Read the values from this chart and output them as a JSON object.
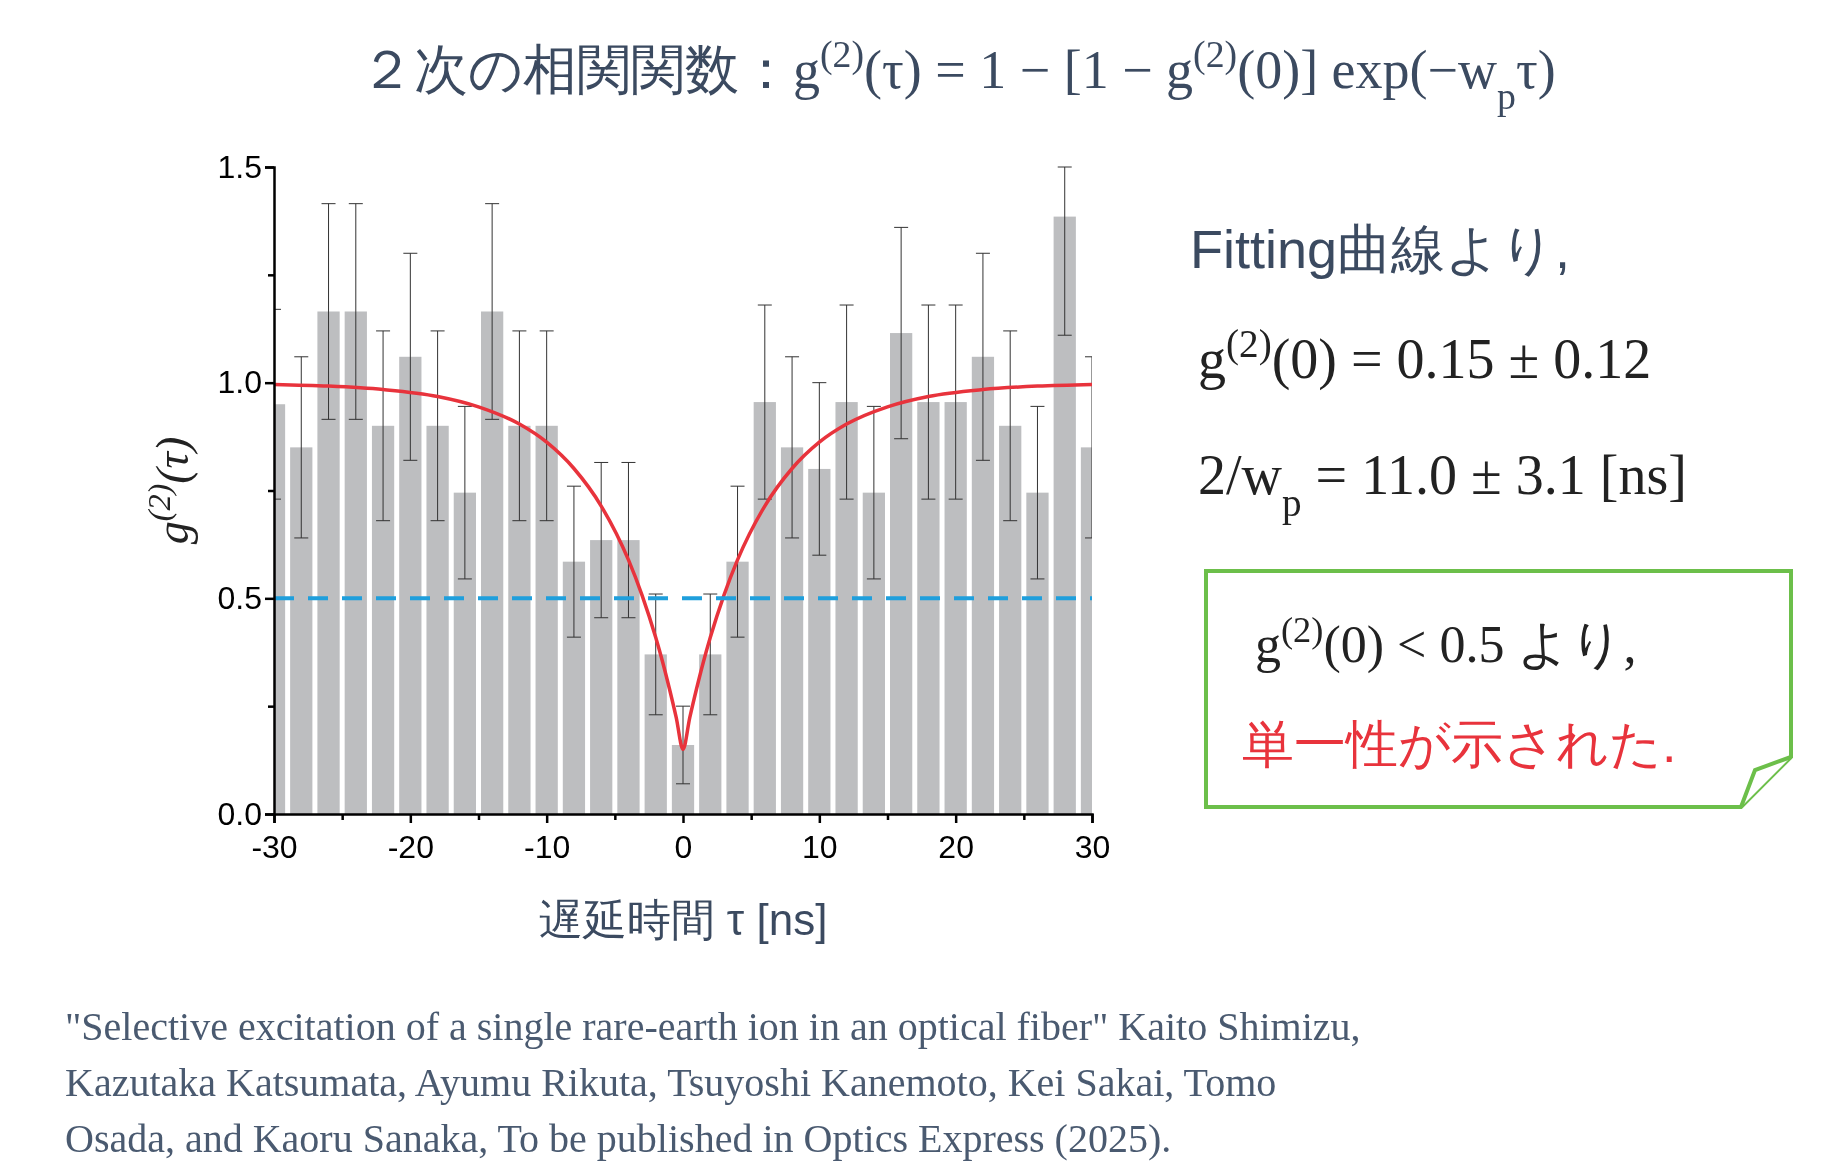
{
  "chart_data": {
    "type": "bar",
    "title": "２次の相関関数：g$^{(2)}$(τ) = 1 − [1 − g$^{(2)}$(0)] exp(−w$_{p}$τ)",
    "xlabel": "遅延時間 τ [ns]",
    "ylabel": "g$^{(2)}$(τ)",
    "x": [
      -30,
      -28,
      -26,
      -24,
      -22,
      -20,
      -18,
      -16,
      -14,
      -12,
      -10,
      -8,
      -6,
      -4,
      -2,
      0,
      2,
      4,
      6,
      8,
      10,
      12,
      14,
      16,
      18,
      20,
      22,
      24,
      26,
      28,
      30
    ],
    "series": [
      {
        "color": "#bdbec0",
        "values": [
          0.95,
          0.85,
          1.165,
          1.165,
          0.9,
          1.06,
          0.9,
          0.745,
          1.165,
          0.9,
          0.9,
          0.585,
          0.635,
          0.635,
          0.37,
          0.16,
          0.37,
          0.585,
          0.955,
          0.85,
          0.8,
          0.955,
          0.745,
          1.115,
          0.955,
          0.955,
          1.06,
          0.9,
          0.745,
          1.385,
          0.85
        ],
        "errors": [
          0.22,
          0.21,
          0.25,
          0.25,
          0.22,
          0.24,
          0.22,
          0.2,
          0.25,
          0.22,
          0.22,
          0.175,
          0.18,
          0.18,
          0.14,
          0.09,
          0.14,
          0.175,
          0.225,
          0.21,
          0.2,
          0.225,
          0.2,
          0.245,
          0.225,
          0.225,
          0.24,
          0.22,
          0.2,
          [
            1.11,
            1.5
          ],
          0.21
        ]
      },
      {
        "type": "line",
        "color": "#e8333c",
        "x": [
          -30,
          -26,
          -22,
          -18,
          -15,
          -12,
          -10,
          -8,
          -6,
          -4,
          -3,
          -2,
          -1.5,
          -1,
          -0.5,
          0,
          0.5,
          1,
          1.5,
          2,
          3,
          4,
          6,
          8,
          10,
          12,
          15,
          18,
          22,
          26,
          30
        ],
        "values": [
          0.996,
          0.992,
          0.984,
          0.968,
          0.944,
          0.904,
          0.862,
          0.801,
          0.714,
          0.589,
          0.507,
          0.409,
          0.353,
          0.291,
          0.224,
          0.15,
          0.224,
          0.291,
          0.353,
          0.409,
          0.507,
          0.589,
          0.714,
          0.801,
          0.862,
          0.904,
          0.944,
          0.968,
          0.984,
          0.992,
          0.996
        ]
      }
    ],
    "xlim": [
      -30,
      30
    ],
    "xticks": [
      -30,
      {
        "value": -25,
        "label": null
      },
      -20,
      {
        "value": -15,
        "label": null
      },
      -10,
      {
        "value": -5,
        "label": null
      },
      0,
      {
        "value": 5,
        "label": null
      },
      10,
      {
        "value": 15,
        "label": null
      },
      20,
      {
        "value": 25,
        "label": null
      },
      30
    ],
    "ylim": [
      0,
      1.5
    ],
    "yticks": [
      {
        "value": 0,
        "label": "0.0"
      },
      {
        "value": 0.25,
        "label": null
      },
      0.5,
      {
        "value": 0.75,
        "label": null
      },
      {
        "value": 1,
        "label": "1.0"
      },
      {
        "value": 1.25,
        "label": null
      },
      1.5
    ],
    "ref_lines": [
      {
        "axis": "y",
        "value": 0.5,
        "color": "#1f9fdc",
        "line_style": "dashed"
      }
    ],
    "annotations": [
      "Fitting曲線より,",
      "g$^{(2)}$(0) = 0.15 ± 0.12",
      "2/w$_{p}$ = 11.0 ± 3.1 [ns]",
      "g$^{(2)}$(0) < 0.5 より,",
      "単一性が示された.",
      "\"Selective excitation of a single rare-earth ion in an optical fiber\" Kaito Shimizu,",
      "Kazutaka Katsumata, Ayumu Rikuta, Tsuyoshi Kanemoto, Kei Sakai, Tomo",
      "Osada, and Kaoru Sanaka, To be published in Optics Express (2025)."
    ]
  }
}
